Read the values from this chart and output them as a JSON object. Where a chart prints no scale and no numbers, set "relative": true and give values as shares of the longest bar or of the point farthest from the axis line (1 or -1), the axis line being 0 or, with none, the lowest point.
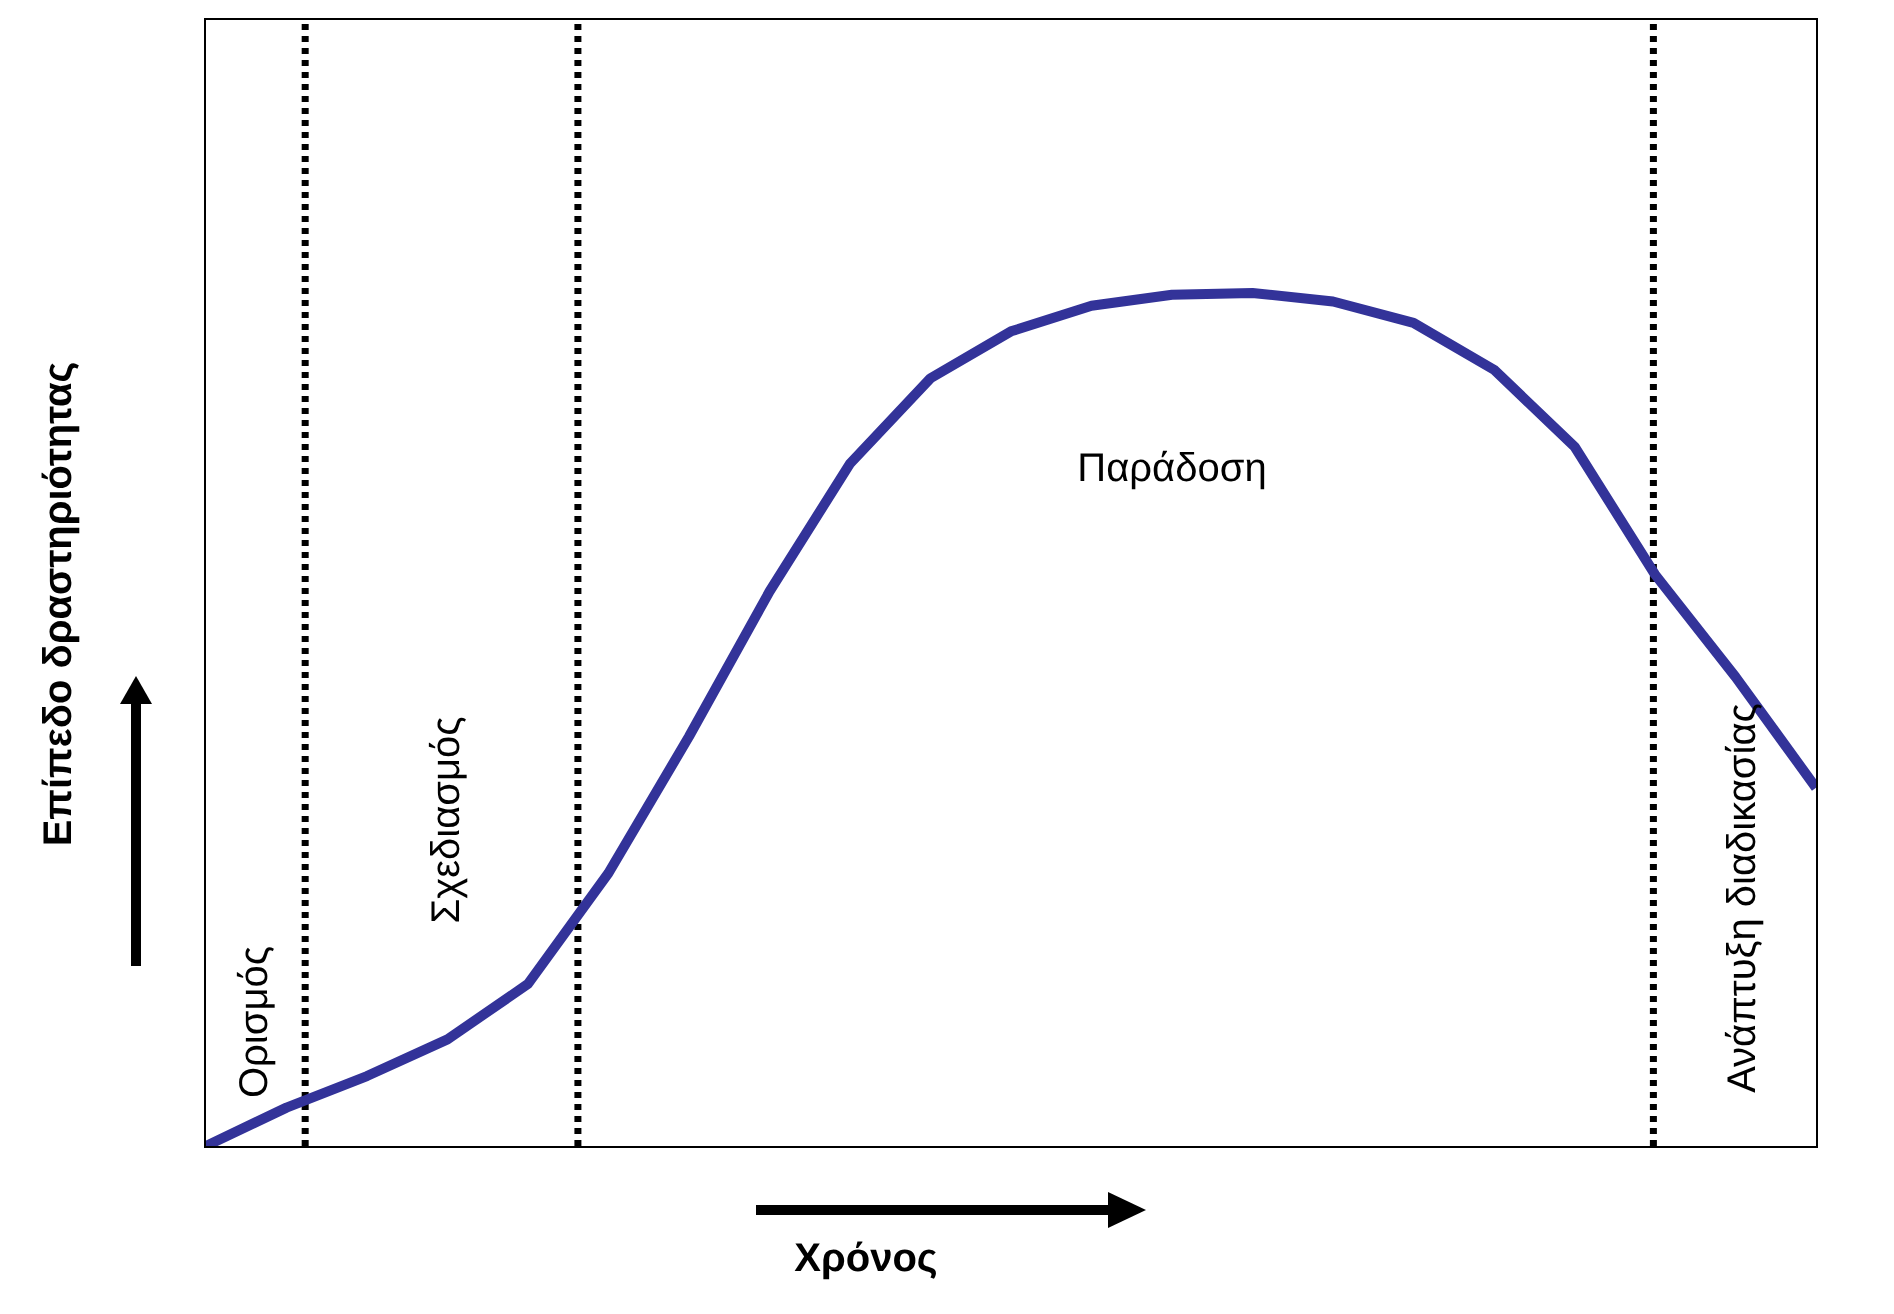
{
  "chart_data": {
    "type": "line",
    "relative": true,
    "xlabel": "Χρόνος",
    "ylabel": "Επίπεδο δραστηριότητας",
    "categories": [
      null,
      null,
      null,
      null,
      null,
      null,
      null,
      null,
      null,
      null,
      null,
      null,
      null,
      null,
      null,
      null,
      null,
      null,
      null,
      null,
      null
    ],
    "series": [
      {
        "color": "#333399",
        "values": [
          0,
          0.045,
          0.082,
          0.125,
          0.19,
          0.32,
          0.48,
          0.65,
          0.8,
          0.9,
          0.955,
          0.985,
          0.998,
          1,
          0.99,
          0.965,
          0.91,
          0.82,
          0.67,
          0.55,
          0.42
        ]
      }
    ],
    "marker": "none",
    "line_style": "solid",
    "annotations": [
      "Ορισμός",
      "Σχεδιασμός",
      "Παράδοση",
      "Ανάπτυξη διαδικασίας"
    ]
  }
}
